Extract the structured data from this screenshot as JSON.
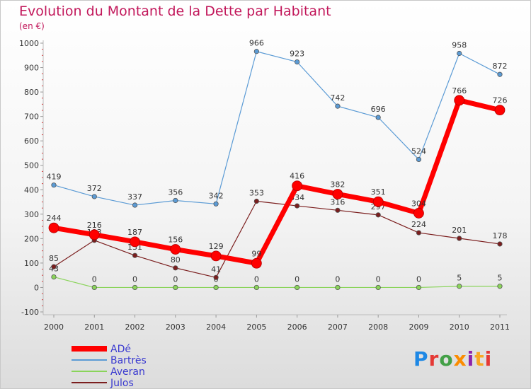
{
  "title": "Evolution du Montant de la Dette par Habitant",
  "subtitle": "(en €)",
  "logo": {
    "text": "Proxiti",
    "colors": [
      "#1e88e5",
      "#e53935",
      "#43a047",
      "#fb8c00",
      "#8e24aa",
      "#f9a825",
      "#e53935"
    ]
  },
  "chart_data": {
    "type": "line",
    "x": [
      "2000",
      "2001",
      "2002",
      "2003",
      "2004",
      "2005",
      "2006",
      "2007",
      "2008",
      "2009",
      "2010",
      "2011"
    ],
    "ylim": [
      -100,
      1000
    ],
    "yticks": [
      -100,
      0,
      100,
      200,
      300,
      400,
      500,
      600,
      700,
      800,
      900,
      1000
    ],
    "grid": false,
    "legend": "bottom-left",
    "series": [
      {
        "name": "ADé",
        "color": "#ff0000",
        "label_color": "#333333",
        "values": [
          244,
          216,
          187,
          156,
          129,
          99,
          416,
          382,
          351,
          304,
          766,
          726
        ]
      },
      {
        "name": "Bartrès",
        "color": "#5b9bd5",
        "label_color": "#333333",
        "values": [
          419,
          372,
          337,
          356,
          342,
          966,
          923,
          742,
          696,
          524,
          958,
          872
        ]
      },
      {
        "name": "Averan",
        "color": "#8ad45a",
        "label_color": "#333333",
        "values": [
          43,
          0,
          0,
          0,
          0,
          0,
          0,
          0,
          0,
          0,
          5,
          5
        ]
      },
      {
        "name": "Julos",
        "color": "#7b1e1e",
        "label_color": "#333333",
        "values": [
          85,
          193,
          131,
          80,
          41,
          353,
          334,
          316,
          297,
          224,
          201,
          178
        ]
      }
    ]
  }
}
